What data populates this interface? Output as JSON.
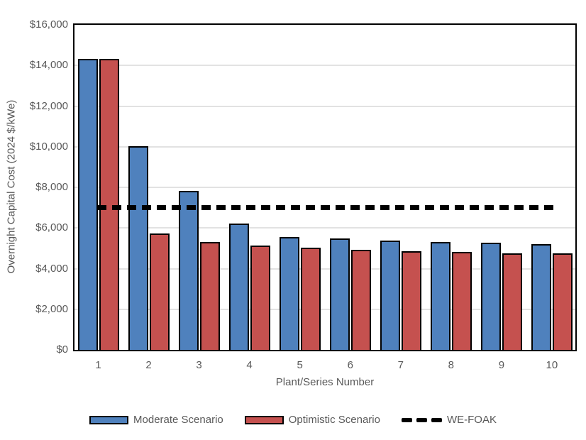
{
  "chart_data": {
    "type": "bar",
    "title": "",
    "xlabel": "Plant/Series Number",
    "ylabel": "Overnight Capital Cost (2024 $/kWe)",
    "categories": [
      "1",
      "2",
      "3",
      "4",
      "5",
      "6",
      "7",
      "8",
      "9",
      "10"
    ],
    "series": [
      {
        "name": "Moderate Scenario",
        "color": "#4F81BD",
        "values": [
          14250,
          9950,
          7750,
          6150,
          5500,
          5400,
          5300,
          5250,
          5200,
          5150
        ]
      },
      {
        "name": "Optimistic Scenario",
        "color": "#C5514F",
        "values": [
          14250,
          5650,
          5250,
          5050,
          4950,
          4850,
          4800,
          4750,
          4700,
          4700
        ]
      }
    ],
    "reference_line": {
      "name": "WE-FOAK",
      "value": 7000,
      "style": "dashed",
      "color": "#000000"
    },
    "ylim": [
      0,
      16000
    ],
    "ytick_interval": 2000,
    "ytick_labels": [
      "$0",
      "$2,000",
      "$4,000",
      "$6,000",
      "$8,000",
      "$10,000",
      "$12,000",
      "$14,000",
      "$16,000"
    ],
    "grid": true,
    "gridline_color": "#e2e2e2",
    "bar_outline_color": "#000000",
    "legend_position": "bottom"
  }
}
